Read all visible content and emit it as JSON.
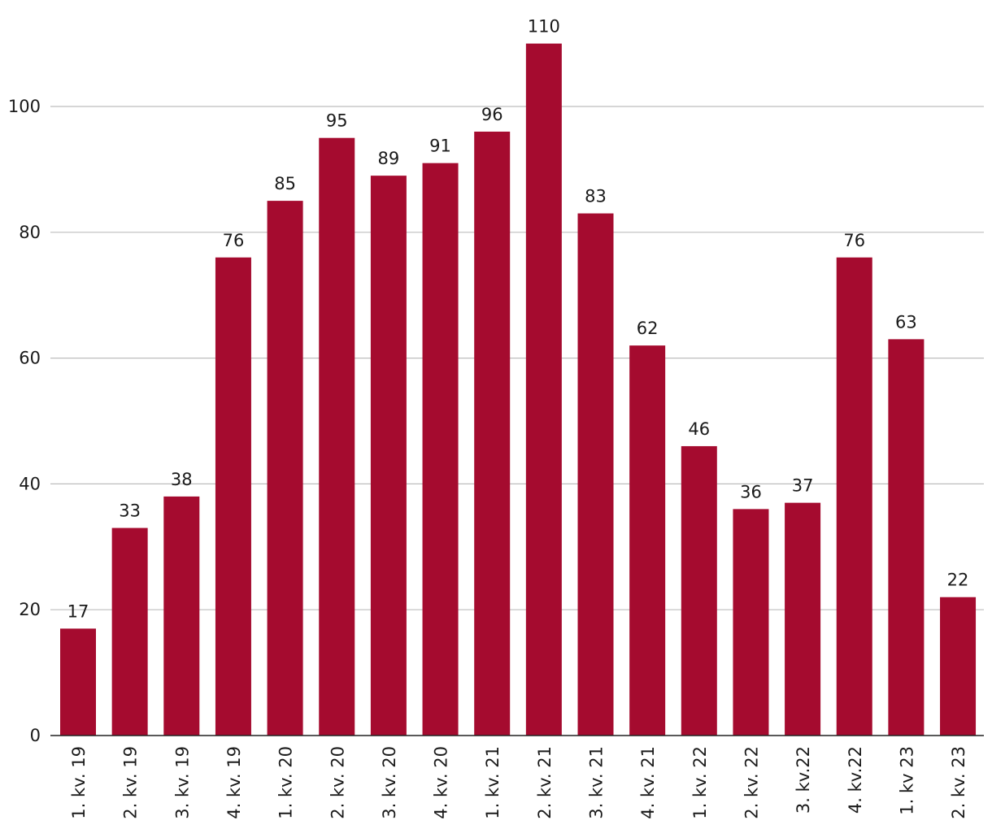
{
  "chart_data": {
    "type": "bar",
    "categories": [
      "1. kv. 19",
      "2. kv. 19",
      "3. kv. 19",
      "4. kv. 19",
      "1. kv. 20",
      "2. kv. 20",
      "3. kv. 20",
      "4. kv. 20",
      "1. kv. 21",
      "2. kv. 21",
      "3. kv. 21",
      "4. kv. 21",
      "1. kv. 22",
      "2. kv. 22",
      "3. kv.22",
      "4. kv.22",
      "1. kv 23",
      "2. kv. 23"
    ],
    "values": [
      17,
      33,
      38,
      76,
      85,
      95,
      89,
      91,
      96,
      110,
      83,
      62,
      46,
      36,
      37,
      76,
      63,
      22
    ],
    "data_labels": [
      "17",
      "33",
      "38",
      "76",
      "85",
      "95",
      "89",
      "91",
      "96",
      "110",
      "83",
      "62",
      "46",
      "36",
      "37",
      "76",
      "63",
      "22"
    ],
    "ylim": [
      0,
      115
    ],
    "yticks": [
      0,
      20,
      40,
      60,
      80,
      100
    ],
    "ytick_labels": [
      "0",
      "20",
      "40",
      "60",
      "80",
      "100"
    ],
    "grid": true,
    "bar_color": "#a50b2f",
    "title": "",
    "xlabel": "",
    "ylabel": ""
  }
}
